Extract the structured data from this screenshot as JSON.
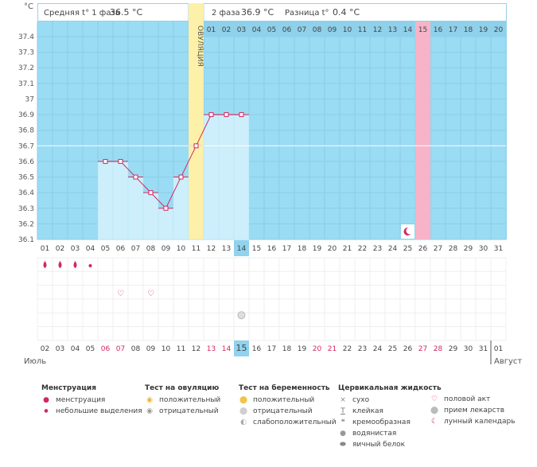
{
  "header": {
    "unit": "°C",
    "phase1_label": "Средняя t° 1 фаза",
    "phase1_value": "36.5 °C",
    "phase2_label": "2 фаза",
    "phase2_value": "36.9 °C",
    "diff_label": "Разница t°",
    "diff_value": "0.4 °C",
    "ovulation_label": "ОВУЛЯЦИЯ"
  },
  "chart_data": {
    "type": "line",
    "ylim": [
      36.1,
      37.4
    ],
    "y_ticks": [
      "36.1",
      "36.2",
      "36.3",
      "36.4",
      "36.5",
      "36.6",
      "36.7",
      "36.8",
      "36.9",
      "37",
      "37.1",
      "37.2",
      "37.3",
      "37.4"
    ],
    "cycle_days": [
      "01",
      "02",
      "03",
      "04",
      "05",
      "06",
      "07",
      "08",
      "09",
      "10",
      "11",
      "12",
      "13",
      "14",
      "15",
      "16",
      "17",
      "18",
      "19",
      "20",
      "21",
      "22",
      "23",
      "24",
      "25",
      "26",
      "27",
      "28",
      "29",
      "30",
      "31"
    ],
    "phase2_days": [
      "01",
      "02",
      "03",
      "04",
      "05",
      "06",
      "07",
      "08",
      "09",
      "10",
      "11",
      "12",
      "13",
      "14",
      "15",
      "16",
      "17",
      "18",
      "19",
      "20"
    ],
    "temperatures": [
      null,
      null,
      null,
      null,
      36.6,
      36.6,
      36.5,
      36.4,
      36.3,
      36.5,
      36.7,
      36.9,
      36.9,
      36.9,
      null,
      null,
      null,
      null,
      null,
      null,
      null,
      null,
      null,
      null,
      null,
      null,
      null,
      null,
      null,
      null,
      null
    ],
    "coverline": 36.7,
    "ovulation_day_index": 10,
    "highlight_day_index": 13,
    "pink_day_index": 25,
    "moon_day_index": 24,
    "dates": [
      "02",
      "03",
      "04",
      "05",
      "06",
      "07",
      "08",
      "09",
      "10",
      "11",
      "12",
      "13",
      "14",
      "15",
      "16",
      "17",
      "18",
      "19",
      "20",
      "21",
      "22",
      "23",
      "24",
      "25",
      "26",
      "27",
      "28",
      "29",
      "30",
      "31",
      "01"
    ],
    "red_date_indices": [
      4,
      5,
      11,
      12,
      18,
      19,
      25,
      26
    ],
    "month_start": "Июль",
    "month_end": "Август",
    "menstruation_big": [
      0,
      1,
      2
    ],
    "menstruation_small": [
      3
    ],
    "intercourse": [
      5,
      7
    ],
    "pregnancy_test": [
      13
    ]
  },
  "colors": {
    "plot_bg": "#9adcf4",
    "bar_fill": "#cdeefb",
    "line": "#d2285f",
    "ovulation": "#fdf0a8",
    "pink": "#f7b3c7",
    "highlight": "#8fd3ef",
    "red_text": "#d2285f"
  },
  "legend": {
    "menstruation": {
      "title": "Менструация",
      "items": [
        {
          "icon": "drop-icon",
          "label": "менструация"
        },
        {
          "icon": "small-drop-icon",
          "label": "небольшие выделения"
        }
      ]
    },
    "ovulation_test": {
      "title": "Тест на овуляцию",
      "items": [
        {
          "icon": "sun-icon",
          "label": "положительный"
        },
        {
          "icon": "grey-circle-icon",
          "label": "отрицательный"
        }
      ]
    },
    "pregnancy_test": {
      "title": "Тест на беременность",
      "items": [
        {
          "icon": "yellow-circle-icon",
          "label": "положительный"
        },
        {
          "icon": "white-circle-icon",
          "label": "отрицательный"
        },
        {
          "icon": "striped-circle-icon",
          "label": "слабоположительный"
        }
      ]
    },
    "cervical": {
      "title": "Цервикальная жидкость",
      "items": [
        {
          "icon": "cross-icon",
          "label": "сухо"
        },
        {
          "icon": "t-icon",
          "label": "клейкая"
        },
        {
          "icon": "cream-icon",
          "label": "кремообразная"
        },
        {
          "icon": "water-drop-icon",
          "label": "водянистая"
        },
        {
          "icon": "egg-white-icon",
          "label": "яичный белок"
        }
      ]
    },
    "other": {
      "items": [
        {
          "icon": "heart-icon",
          "label": "половой акт"
        },
        {
          "icon": "pill-icon",
          "label": "прием лекарств"
        },
        {
          "icon": "moon-icon",
          "label": "лунный календарь"
        }
      ]
    }
  }
}
